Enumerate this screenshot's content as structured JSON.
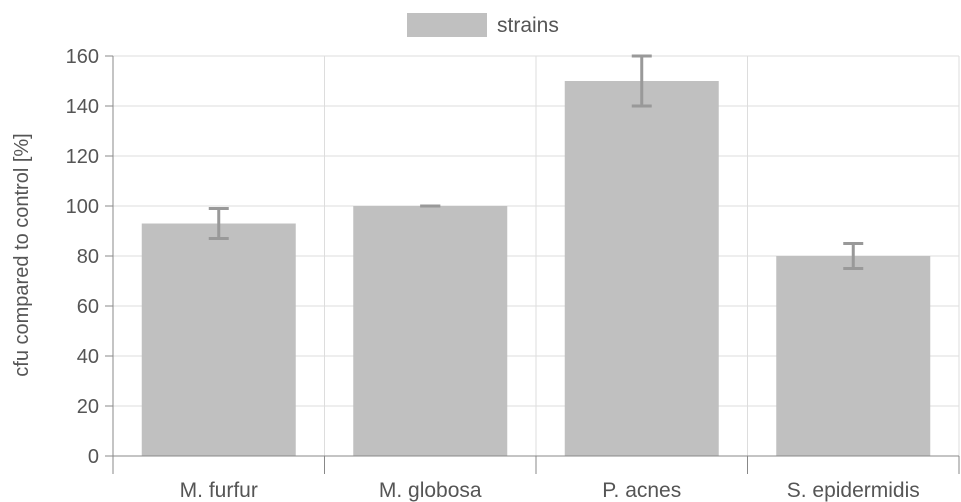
{
  "chart_data": {
    "type": "bar",
    "title": "",
    "categories": [
      "M. furfur",
      "M. globosa",
      "P. acnes",
      "S. epidermidis"
    ],
    "series": [
      {
        "name": "strains",
        "values": [
          93,
          100,
          150,
          80
        ],
        "error": [
          6,
          0,
          10,
          5
        ],
        "color": "#c0c0c0"
      }
    ],
    "xlabel": "",
    "ylabel": "cfu compared to control [%]",
    "ylim": [
      0,
      160
    ],
    "yticks": [
      0,
      20,
      40,
      60,
      80,
      100,
      120,
      140,
      160
    ],
    "grid": true,
    "legend": "top-center",
    "colors": {
      "bar": "#c0c0c0",
      "error_bar": "#999999",
      "grid": "#dddddd",
      "axis": "#888888",
      "text": "#555555"
    }
  }
}
